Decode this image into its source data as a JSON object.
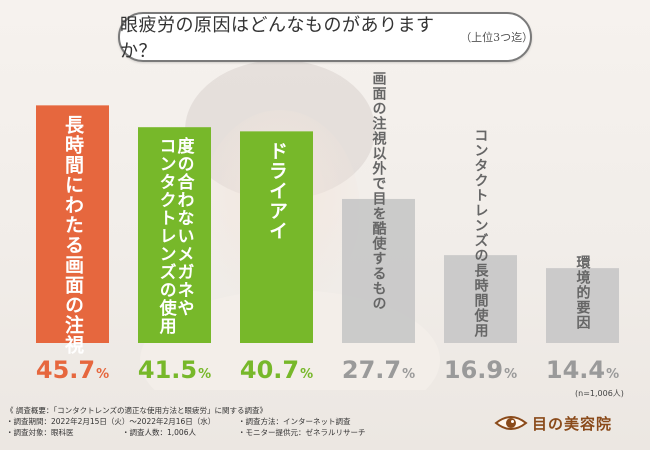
{
  "title": {
    "main": "眼疲労の原因はどんなものがありますか？",
    "sub": "（上位3つ迄）"
  },
  "colors": {
    "bars": [
      "#e6673e",
      "#77b82a",
      "#77b82a",
      "#c7c7c7",
      "#c7c7c7",
      "#c7c7c7"
    ],
    "values": [
      "#e6673e",
      "#77b82a",
      "#77b82a",
      "#9a9a9a",
      "#9a9a9a",
      "#9a9a9a"
    ],
    "bar_text": [
      "#ffffff",
      "#ffffff",
      "#ffffff",
      "#666666",
      "#666666",
      "#666666"
    ]
  },
  "chart_data": {
    "type": "bar",
    "title": "眼疲労の原因はどんなものがありますか？（上位3つ迄）",
    "categories": [
      "長時間にわたる画面の注視",
      "度の合わないメガネやコンタクトレンズの使用",
      "ドライアイ",
      "画面の注視以外で目を酷使するもの",
      "コンタクトレンズの長時間使用",
      "環境的要因"
    ],
    "values": [
      45.7,
      41.5,
      40.7,
      27.7,
      16.9,
      14.4
    ],
    "value_labels": [
      "45.7",
      "41.5",
      "40.7",
      "27.7",
      "16.9",
      "14.4"
    ],
    "unit": "%",
    "ylim": [
      0,
      50
    ],
    "grid": false,
    "legend": "none",
    "note": "(n=1,006人)"
  },
  "bar_labels": [
    [
      "長時間にわたる画面の注視"
    ],
    [
      "度の合わないメガネや",
      "コンタクトレンズの使用"
    ],
    [
      "ドライアイ"
    ],
    [
      "画面の注視以外で目を酷使するもの"
    ],
    [
      "コンタクトレンズの長時間使用"
    ],
    [
      "環境的要因"
    ]
  ],
  "survey": {
    "heading": "《 調査概要：「コンタクトレンズの適正な使用方法と眼疲労」に関する調査》",
    "period": "・調査期間：2022年2月15日（火）～2022年2月16日（水）",
    "method": "・調査方法：インターネット調査",
    "target": "・調査対象：眼科医",
    "count": "・調査人数：1,006人",
    "provider": "・モニター提供元：ゼネラルリサーチ"
  },
  "logo": {
    "text": "目の美容院",
    "icon": "eye-icon"
  }
}
